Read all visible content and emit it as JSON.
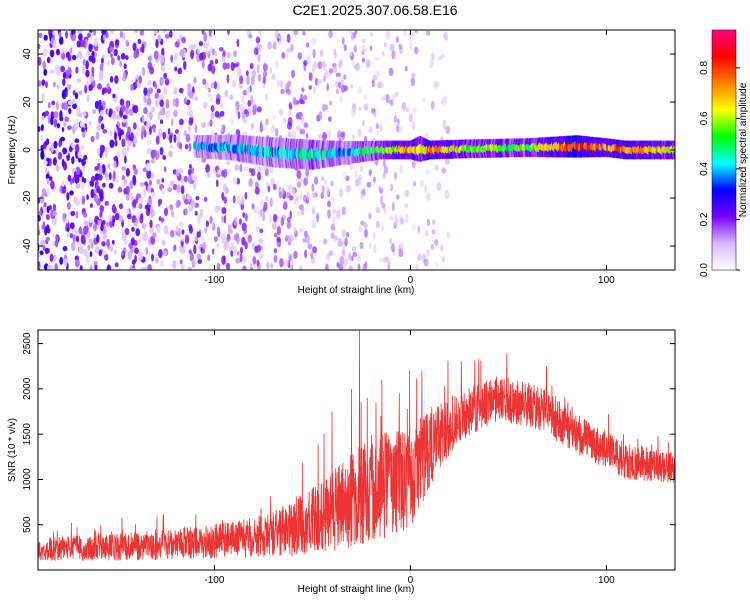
{
  "title": "C2E1.2025.307.06.58.E16",
  "chart_data": [
    {
      "type": "heatmap",
      "xlabel": "Height of straight line (km)",
      "ylabel": "Frequency (Hz)",
      "xlim": [
        -190,
        135
      ],
      "ylim": [
        -50,
        50
      ],
      "x_ticks": [
        -100,
        0,
        100
      ],
      "y_ticks": [
        -40,
        -20,
        0,
        20,
        40
      ],
      "colorbar": {
        "label": "Normalized spectral amplitude",
        "range": [
          0,
          0.95
        ],
        "ticks": [
          0,
          0.2,
          0.4,
          0.6,
          0.8
        ],
        "colormap": [
          "#ffffff",
          "#d7b8ff",
          "#7b00ff",
          "#0000ff",
          "#00ffff",
          "#00ff00",
          "#ffff00",
          "#ff8000",
          "#ff0000",
          "#ff0080"
        ]
      },
      "band": [
        {
          "x": -110,
          "center": 1.5,
          "halfwidth": 3.0,
          "amplitude": 0.35
        },
        {
          "x": -90,
          "center": 1.0,
          "halfwidth": 3.5,
          "amplitude": 0.4
        },
        {
          "x": -70,
          "center": -1.0,
          "halfwidth": 4.0,
          "amplitude": 0.4
        },
        {
          "x": -50,
          "center": -2.0,
          "halfwidth": 4.0,
          "amplitude": 0.45
        },
        {
          "x": -30,
          "center": -1.0,
          "halfwidth": 3.0,
          "amplitude": 0.4
        },
        {
          "x": -15,
          "center": 0.0,
          "halfwidth": 2.5,
          "amplitude": 0.55
        },
        {
          "x": 0,
          "center": 0.0,
          "halfwidth": 2.5,
          "amplitude": 0.7
        },
        {
          "x": 5,
          "center": 0.5,
          "halfwidth": 3.5,
          "amplitude": 0.6
        },
        {
          "x": 10,
          "center": 0.0,
          "halfwidth": 2.5,
          "amplitude": 0.75
        },
        {
          "x": 30,
          "center": 0.5,
          "halfwidth": 2.5,
          "amplitude": 0.55
        },
        {
          "x": 60,
          "center": 1.0,
          "halfwidth": 2.5,
          "amplitude": 0.55
        },
        {
          "x": 85,
          "center": 1.5,
          "halfwidth": 3.0,
          "amplitude": 0.8
        },
        {
          "x": 100,
          "center": 1.0,
          "halfwidth": 2.5,
          "amplitude": 0.7
        },
        {
          "x": 110,
          "center": 0.0,
          "halfwidth": 2.5,
          "amplitude": 0.75
        },
        {
          "x": 135,
          "center": 0.0,
          "halfwidth": 2.5,
          "amplitude": 0.6
        }
      ],
      "noise_region": {
        "x_start": -190,
        "x_end": -20,
        "amplitude_range": [
          0.05,
          0.3
        ]
      }
    },
    {
      "type": "line",
      "xlabel": "Height of straight line (km)",
      "ylabel": "SNR (10 * v/v)",
      "xlim": [
        -190,
        135
      ],
      "ylim": [
        0,
        2650
      ],
      "x_ticks": [
        -100,
        0,
        100
      ],
      "y_ticks": [
        500,
        1000,
        1500,
        2000,
        2500
      ],
      "color": "#ee3333",
      "envelope": [
        {
          "x": -190,
          "mean": 230,
          "spread": 130
        },
        {
          "x": -150,
          "mean": 250,
          "spread": 150
        },
        {
          "x": -110,
          "mean": 300,
          "spread": 180
        },
        {
          "x": -80,
          "mean": 360,
          "spread": 220
        },
        {
          "x": -60,
          "mean": 450,
          "spread": 300
        },
        {
          "x": -40,
          "mean": 650,
          "spread": 450
        },
        {
          "x": -20,
          "mean": 900,
          "spread": 600
        },
        {
          "x": 0,
          "mean": 1000,
          "spread": 550
        },
        {
          "x": 10,
          "mean": 1350,
          "spread": 450
        },
        {
          "x": 25,
          "mean": 1700,
          "spread": 280
        },
        {
          "x": 45,
          "mean": 1900,
          "spread": 250
        },
        {
          "x": 65,
          "mean": 1800,
          "spread": 250
        },
        {
          "x": 85,
          "mean": 1500,
          "spread": 220
        },
        {
          "x": 110,
          "mean": 1200,
          "spread": 200
        },
        {
          "x": 135,
          "mean": 1120,
          "spread": 180
        }
      ],
      "spikes": [
        {
          "x": -26,
          "y": 2650
        },
        {
          "x": -30,
          "y": 2000
        },
        {
          "x": -40,
          "y": 1750
        },
        {
          "x": -22,
          "y": 1900
        },
        {
          "x": -15,
          "y": 1700
        },
        {
          "x": -5,
          "y": 1500
        }
      ]
    }
  ]
}
